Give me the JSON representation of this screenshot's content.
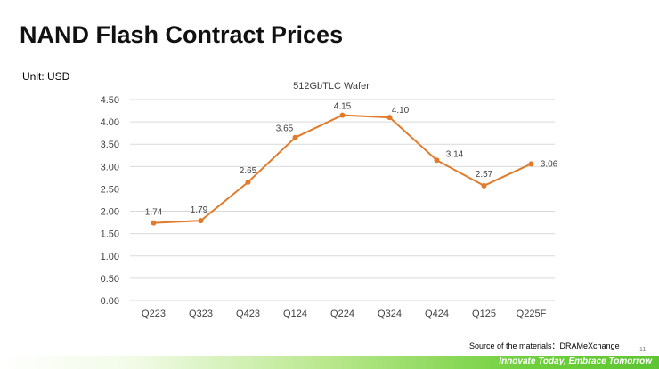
{
  "slide": {
    "title": "NAND Flash Contract Prices",
    "unit": "Unit: USD",
    "source": "Source of the materials：DRAMeXchange",
    "page_number": "11",
    "tagline": "Innovate Today, Embrace Tomorrow"
  },
  "colors": {
    "line": "#e07b2b",
    "grid": "#d9d9d9",
    "axis_text": "#404040"
  },
  "chart_data": {
    "type": "line",
    "title": "512GbTLC Wafer",
    "xlabel": "",
    "ylabel": "",
    "categories": [
      "Q223",
      "Q323",
      "Q423",
      "Q124",
      "Q224",
      "Q324",
      "Q424",
      "Q125",
      "Q225F"
    ],
    "series": [
      {
        "name": "512GbTLC Wafer",
        "values": [
          1.74,
          1.79,
          2.65,
          3.65,
          4.15,
          4.1,
          3.14,
          2.57,
          3.06
        ],
        "labels": [
          "1.74",
          "1.79",
          "2.65",
          "3.65",
          "4.15",
          "4.10",
          "3.14",
          "2.57",
          "3.06"
        ]
      }
    ],
    "ylim": [
      0,
      4.5
    ],
    "yticks": [
      "0.00",
      "0.50",
      "1.00",
      "1.50",
      "2.00",
      "2.50",
      "3.00",
      "3.50",
      "4.00",
      "4.50"
    ],
    "grid": true,
    "legend": "none"
  }
}
